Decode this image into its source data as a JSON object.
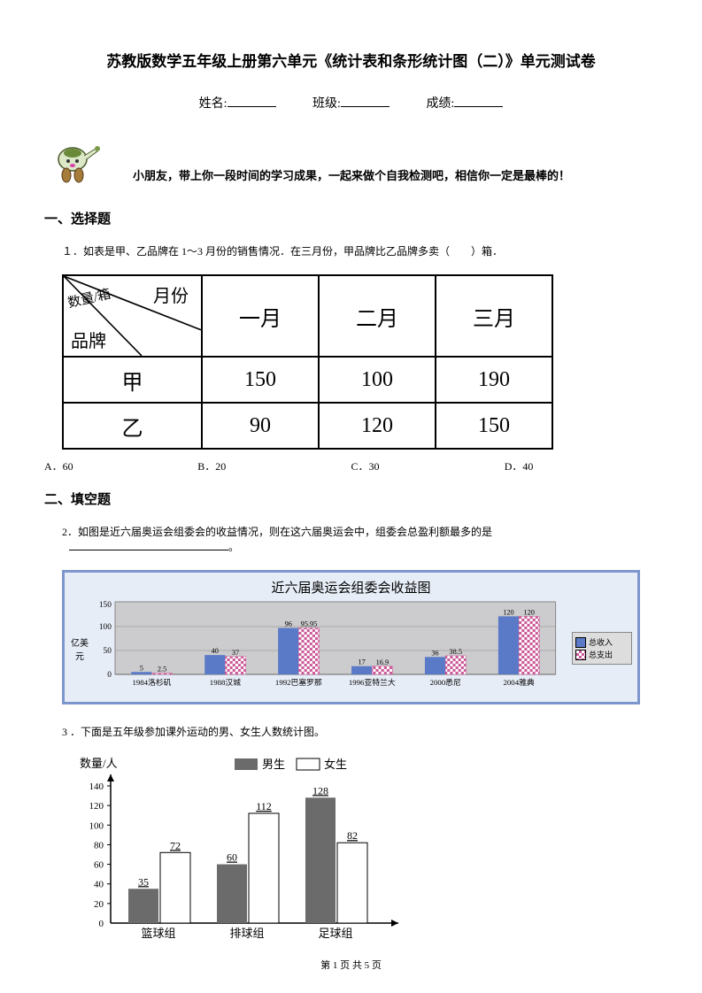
{
  "title": "苏教版数学五年级上册第六单元《统计表和条形统计图（二）》单元测试卷",
  "info": {
    "name_label": "姓名:",
    "class_label": "班级:",
    "score_label": "成绩:"
  },
  "greeting": "小朋友，带上你一段时间的学习成果，一起来做个自我检测吧，相信你一定是最棒的！",
  "sections": {
    "s1": "一、选择题",
    "s2": "二、填空题"
  },
  "q1": {
    "text": "１．如表是甲、乙品牌在 1～3 月份的销售情况．在三月份，甲品牌比乙品牌多卖（　　）箱．",
    "diag": {
      "top": "月份",
      "mid": "数量/箱",
      "bottom": "品牌"
    },
    "cols": [
      "一月",
      "二月",
      "三月"
    ],
    "rows": [
      {
        "label": "甲",
        "vals": [
          "150",
          "100",
          "190"
        ]
      },
      {
        "label": "乙",
        "vals": [
          "90",
          "120",
          "150"
        ]
      }
    ],
    "options": {
      "A": "A．60",
      "B": "B．20",
      "C": "C．30",
      "D": "D．40"
    }
  },
  "q2": {
    "text": "2．如图是近六届奥运会组委会的收益情况，则在这六届奥运会中，组委会总盈利额最多的是",
    "chart": {
      "title": "近六届奥运会组委会收益图",
      "ylabel": "亿美元",
      "background": "#ccccce",
      "plot_bg": "#e7edf7",
      "ylim": [
        0,
        150
      ],
      "ytick_step": 50,
      "categories": [
        "1984洛杉矶",
        "1988汉城",
        "1992巴塞罗那",
        "1996亚特兰大",
        "2000悉尼",
        "2004雅典"
      ],
      "series": [
        {
          "name": "总收入",
          "color": "#5a7ac8",
          "values": [
            5,
            40,
            96,
            17,
            36,
            120
          ]
        },
        {
          "name": "总支出",
          "pattern": "checker",
          "color": "#cc5a98",
          "values": [
            2.5,
            37,
            95.95,
            16.9,
            38.5,
            120
          ]
        }
      ],
      "value_labels": [
        [
          "5",
          "2.5"
        ],
        [
          "40",
          "37"
        ],
        [
          "96",
          "95.95"
        ],
        [
          "17",
          "16.9"
        ],
        [
          "36",
          "38.5"
        ],
        [
          "120",
          "120"
        ]
      ],
      "bar_width": 0.35,
      "grid_color": "#888888"
    }
  },
  "q3": {
    "text": "3 ．下面是五年级参加课外运动的男、女生人数统计图。",
    "chart": {
      "ylabel": "数量/人",
      "legend": [
        {
          "name": "男生",
          "fill": "#6b6b6b"
        },
        {
          "name": "女生",
          "fill": "#ffffff"
        }
      ],
      "ylim": [
        0,
        140
      ],
      "ytick_step": 20,
      "yticks": [
        "0",
        "20",
        "40",
        "60",
        "80",
        "100",
        "120",
        "140"
      ],
      "categories": [
        "篮球组",
        "排球组",
        "足球组"
      ],
      "series": [
        {
          "name": "男生",
          "fill": "#6b6b6b",
          "values": [
            35,
            60,
            128
          ]
        },
        {
          "name": "女生",
          "fill": "#ffffff",
          "values": [
            72,
            112,
            82
          ]
        }
      ],
      "bar_width": 0.38,
      "label_fontsize": 12,
      "tick_fontsize": 10
    }
  },
  "footer": "第 1 页 共 5 页"
}
